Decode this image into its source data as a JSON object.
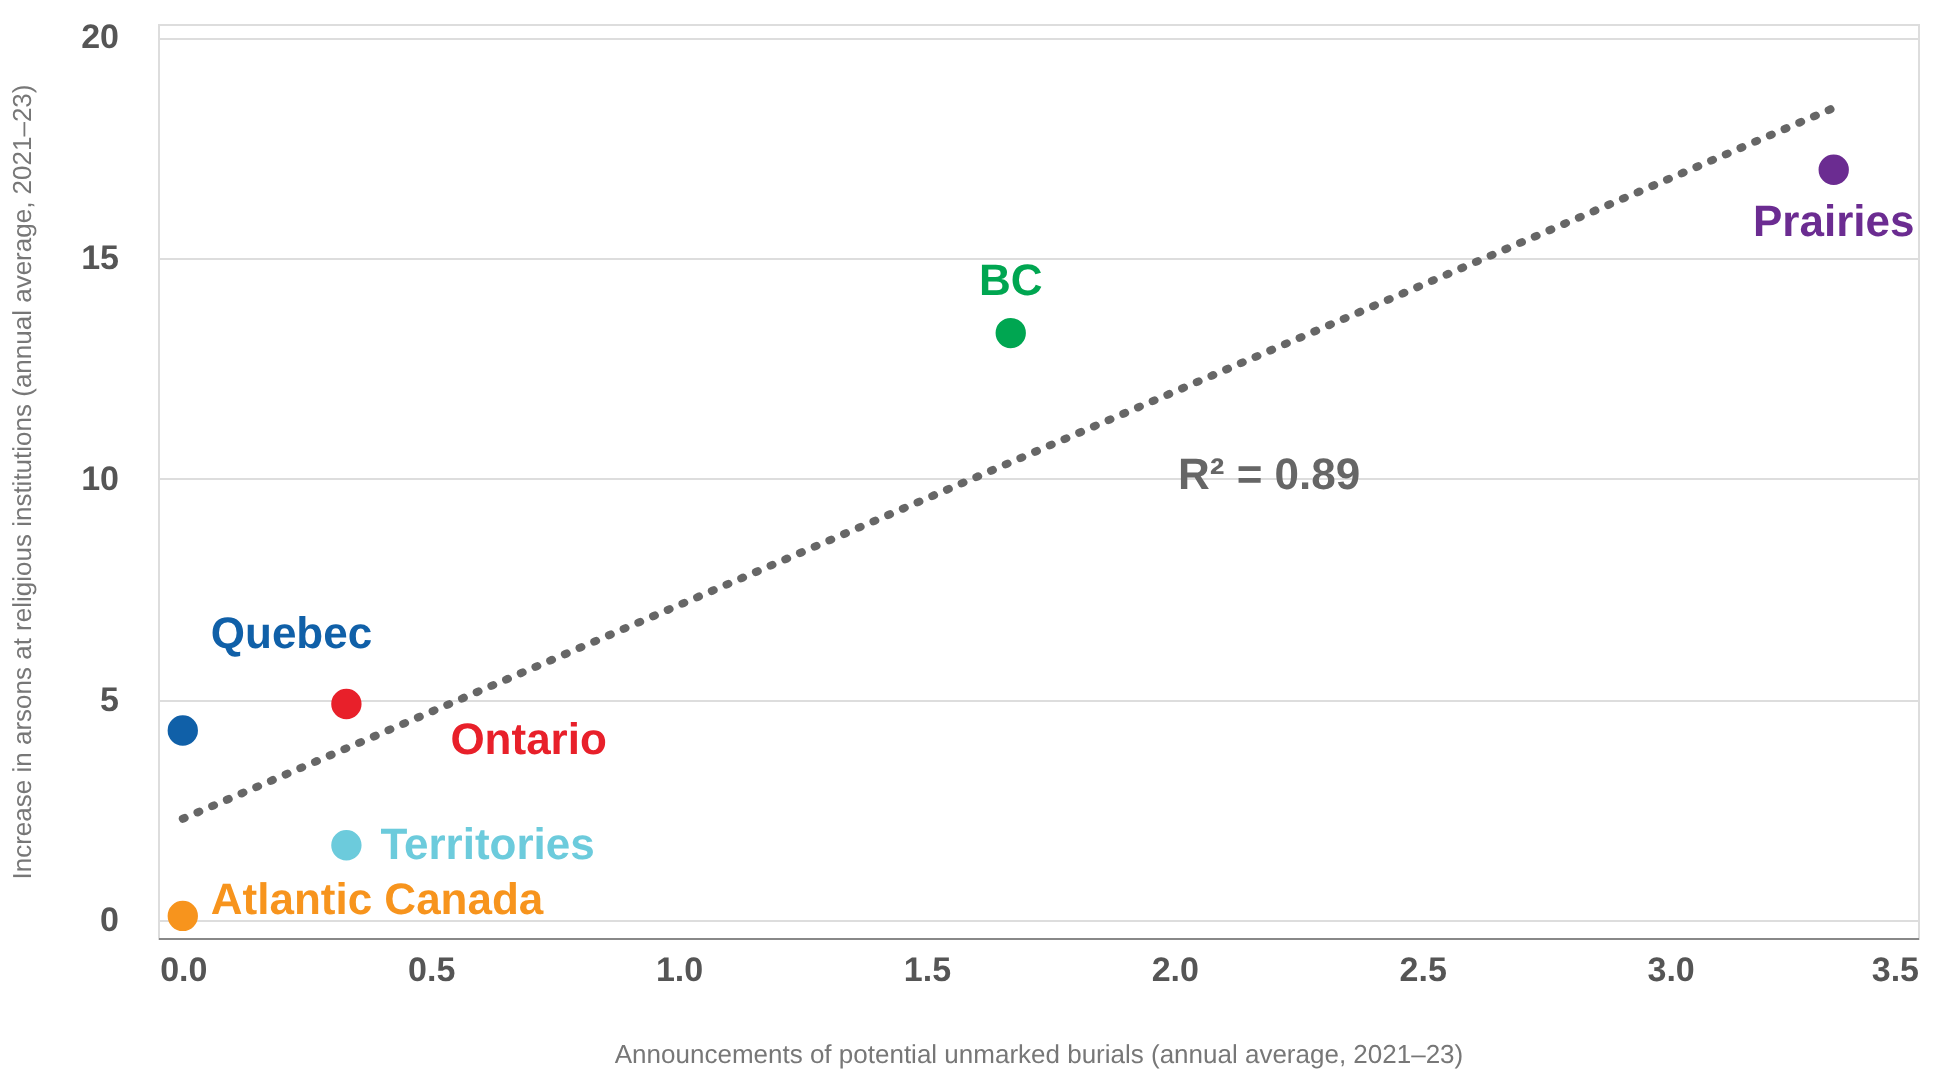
{
  "chart_data": {
    "type": "scatter",
    "xlabel": "Announcements of potential unmarked burials (annual average, 2021–23)",
    "ylabel": "Increase in arsons at religious institutions (annual average, 2021–23)",
    "xlim": [
      -0.05,
      3.5
    ],
    "xticks": [
      {
        "value": 0,
        "label": "0.0"
      },
      {
        "value": 0.5,
        "label": "0.5"
      },
      {
        "value": 1,
        "label": "1.0"
      },
      {
        "value": 1.5,
        "label": "1.5"
      },
      {
        "value": 2,
        "label": "2.0"
      },
      {
        "value": 2.5,
        "label": "2.5"
      },
      {
        "value": 3,
        "label": "3.0"
      },
      {
        "value": 3.5,
        "label": "3.5"
      }
    ],
    "ylim": [
      -0.4,
      20.3
    ],
    "yticks": [
      0,
      5,
      10,
      15,
      20
    ],
    "grid": "y",
    "marker": "circle",
    "series": [
      {
        "name": "Quebec",
        "color": "#1060a8",
        "x": [
          0
        ],
        "values": [
          4.3
        ]
      },
      {
        "name": "Ontario",
        "color": "#e8202a",
        "x": [
          0.33
        ],
        "values": [
          4.9
        ]
      },
      {
        "name": "Territories",
        "color": "#6ccbdc",
        "x": [
          0.33
        ],
        "values": [
          1.7
        ]
      },
      {
        "name": "Atlantic Canada",
        "color": "#f7941d",
        "x": [
          0
        ],
        "values": [
          0.1
        ]
      },
      {
        "name": "BC",
        "color": "#00a651",
        "x": [
          1.67
        ],
        "values": [
          13.3
        ]
      },
      {
        "name": "Prairies",
        "color": "#6b2c91",
        "x": [
          3.33
        ],
        "values": [
          17.0
        ]
      },
      {
        "type": "line",
        "color": "#666666",
        "line_style": "dotted",
        "marker": "none",
        "x": [
          0,
          3.33
        ],
        "values": [
          2.3,
          18.4
        ]
      }
    ],
    "annotations": [
      "R² = 0.89"
    ]
  }
}
